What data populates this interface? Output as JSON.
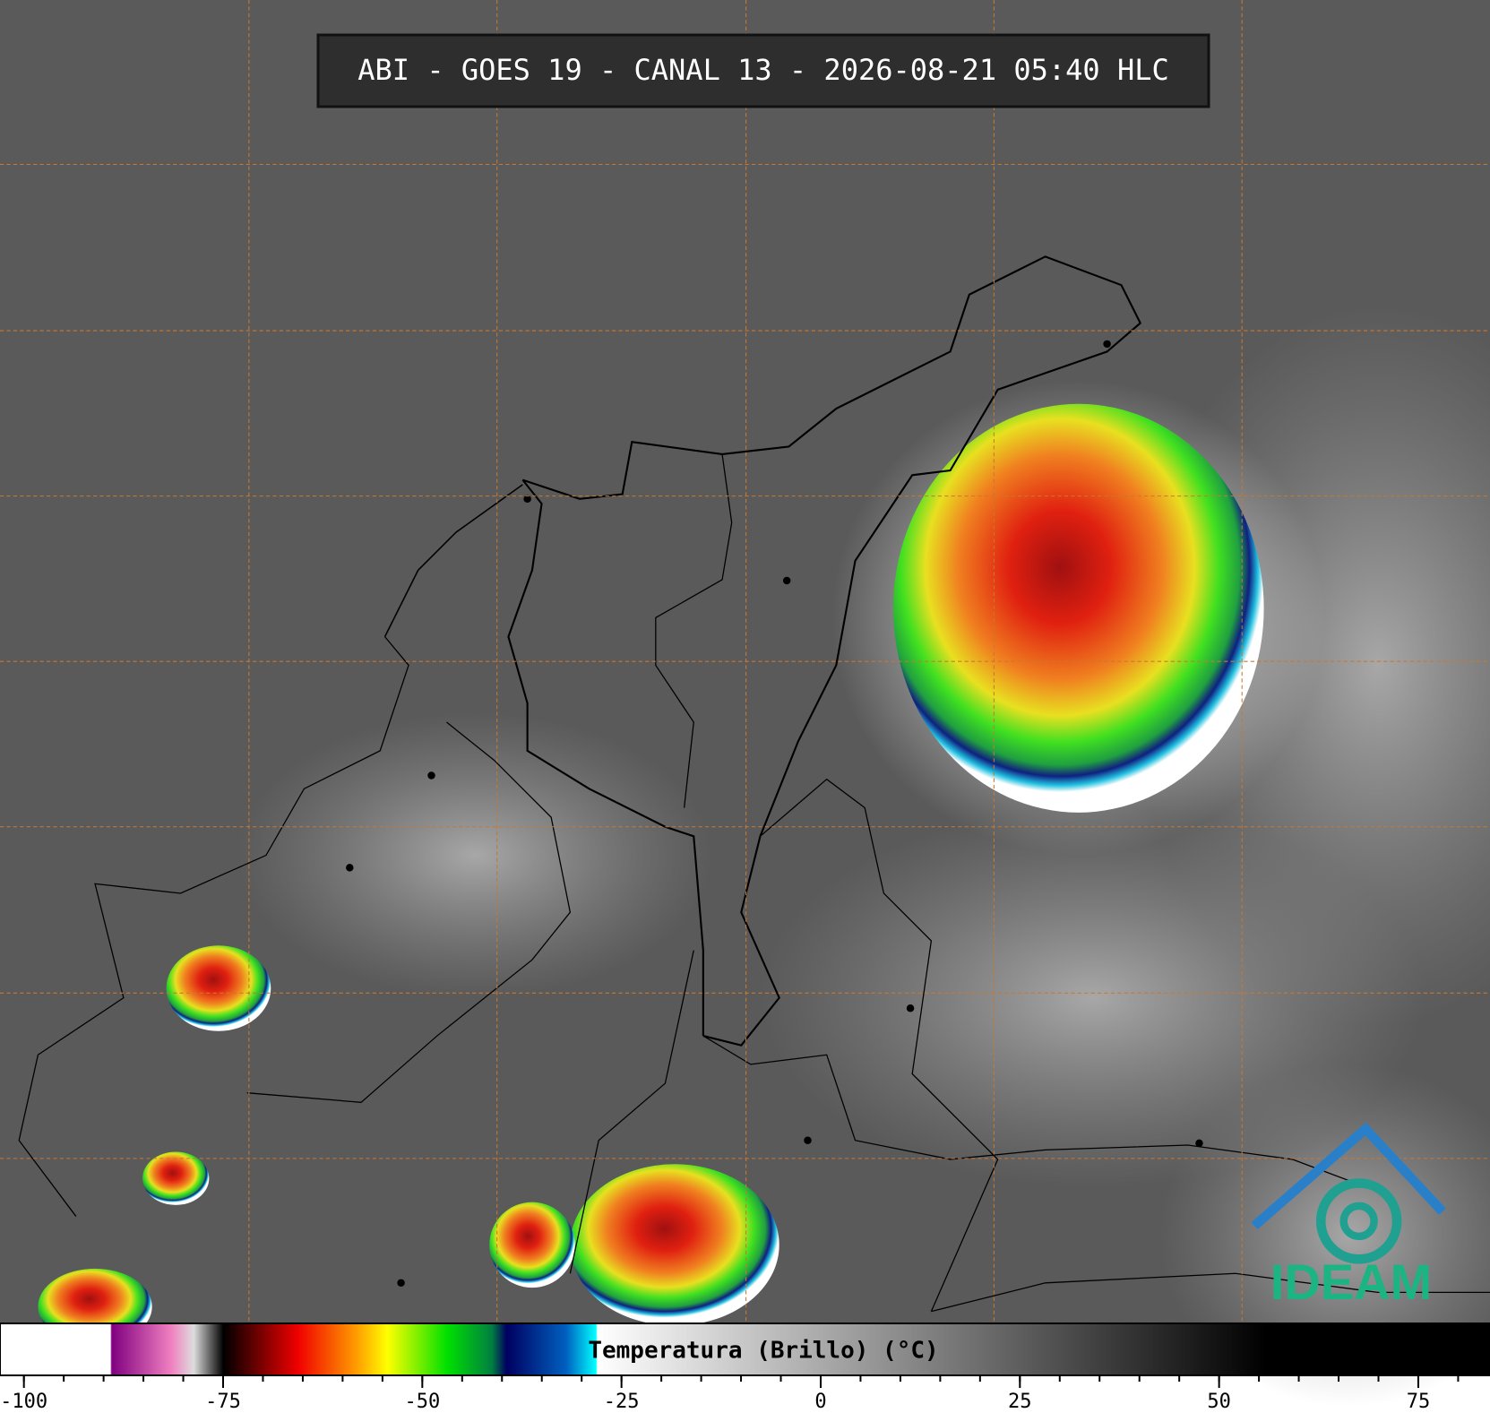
{
  "header": {
    "title": "ABI - GOES 19 - CANAL 13 - 2026-08-21 05:40 HLC"
  },
  "colorbar": {
    "label": "Temperatura (Brillo) (°C)",
    "xlim": [
      -103,
      84
    ],
    "xticks": [
      -100,
      -75,
      -50,
      -25,
      0,
      25,
      50,
      75
    ]
  },
  "logo": {
    "text": "IDEAM"
  }
}
